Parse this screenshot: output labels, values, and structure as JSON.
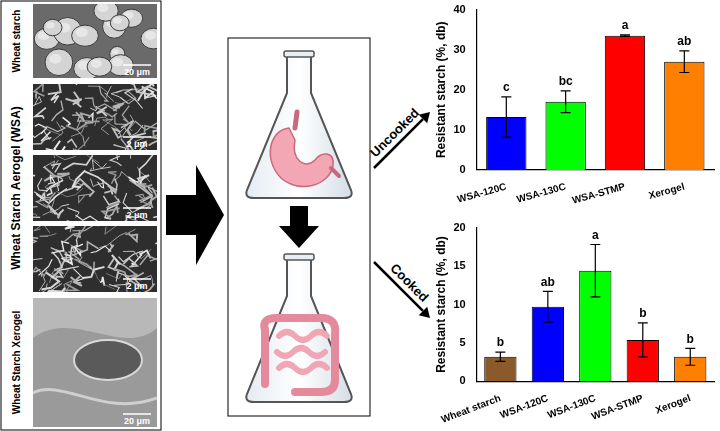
{
  "diagram": {
    "sem_panels": [
      {
        "label": "Wheat starch",
        "scale_bars": [
          "20 μm"
        ]
      },
      {
        "label": "Wheat Starch Aerogel (WSA)",
        "scale_bars": [
          "2 μm",
          "2 μm",
          "2 μm"
        ]
      },
      {
        "label": "Wheat Starch Xerogel",
        "scale_bars": [
          "20 μm"
        ]
      }
    ],
    "digestion_arrows": [
      "Uncooked",
      "Cooked"
    ]
  },
  "chart_data": [
    {
      "type": "bar",
      "y_label": "Resistant starch (%, db)",
      "categories": [
        "WSA-120C",
        "WSA-130C",
        "WSA-STMP",
        "Xerogel"
      ],
      "values": [
        13.2,
        17.0,
        33.5,
        27.0
      ],
      "error": [
        5.0,
        2.7,
        0.2,
        2.7
      ],
      "letters": [
        "c",
        "bc",
        "a",
        "ab"
      ],
      "colors": [
        "#0000ff",
        "#00ff00",
        "#ff0000",
        "#ff8000"
      ],
      "ylim": [
        0,
        40
      ],
      "yticks": [
        0,
        10,
        20,
        30,
        40
      ],
      "grid": false
    },
    {
      "type": "bar",
      "y_label": "Resistant starch (%, db)",
      "categories": [
        "Wheat starch",
        "WSA-120C",
        "WSA-130C",
        "WSA-STMP",
        "Xerogel"
      ],
      "values": [
        3.2,
        9.7,
        14.4,
        5.4,
        3.2
      ],
      "error": [
        0.6,
        2.0,
        3.4,
        2.2,
        1.1
      ],
      "letters": [
        "b",
        "ab",
        "a",
        "b",
        "b"
      ],
      "colors": [
        "#8b5a2b",
        "#0000ff",
        "#00ff00",
        "#ff0000",
        "#ff8000"
      ],
      "ylim": [
        0,
        20
      ],
      "yticks": [
        0,
        5,
        10,
        15,
        20
      ],
      "grid": false
    }
  ]
}
